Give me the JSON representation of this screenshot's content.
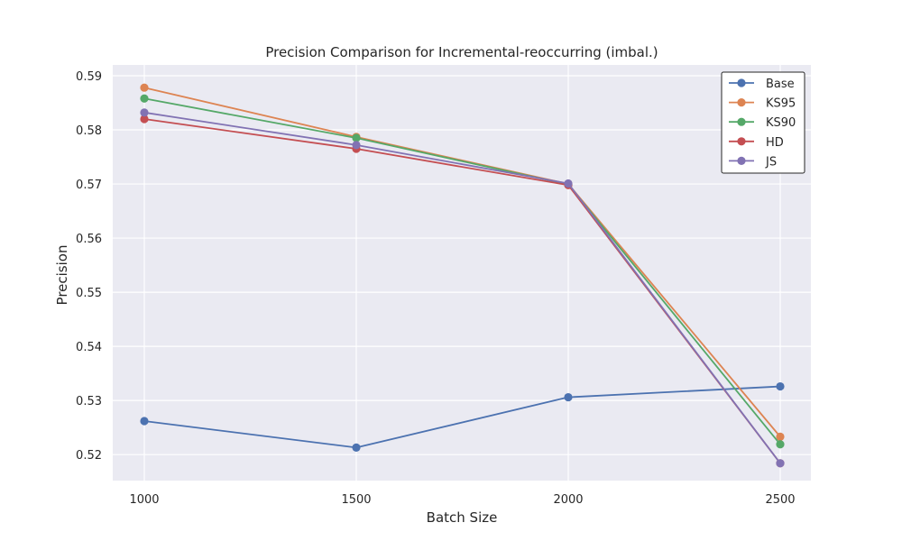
{
  "chart_data": {
    "type": "line",
    "title": "Precision Comparison for Incremental-reoccurring (imbal.)",
    "xlabel": "Batch Size",
    "ylabel": "Precision",
    "x": [
      1000,
      1500,
      2000,
      2500
    ],
    "xticks": [
      "1000",
      "1500",
      "2000",
      "2500"
    ],
    "yticks": [
      "0.52",
      "0.53",
      "0.54",
      "0.55",
      "0.56",
      "0.57",
      "0.58",
      "0.59"
    ],
    "ylim": [
      0.5152,
      0.592
    ],
    "grid": true,
    "legend_position": "top-right",
    "series": [
      {
        "name": "Base",
        "color": "#4c72b0",
        "values": [
          0.5262,
          0.5213,
          0.5306,
          0.5326
        ]
      },
      {
        "name": "KS95",
        "color": "#dd8452",
        "values": [
          0.5878,
          0.5787,
          0.57,
          0.5233
        ]
      },
      {
        "name": "KS90",
        "color": "#55a868",
        "values": [
          0.5858,
          0.5785,
          0.5699,
          0.5219
        ]
      },
      {
        "name": "HD",
        "color": "#c44e52",
        "values": [
          0.582,
          0.5765,
          0.5698,
          0.5184
        ]
      },
      {
        "name": "JS",
        "color": "#8172b3",
        "values": [
          0.5832,
          0.5772,
          0.5701,
          0.5184
        ]
      }
    ],
    "colors": {
      "plot_background": "#eaeaf2",
      "grid": "#ffffff"
    }
  }
}
